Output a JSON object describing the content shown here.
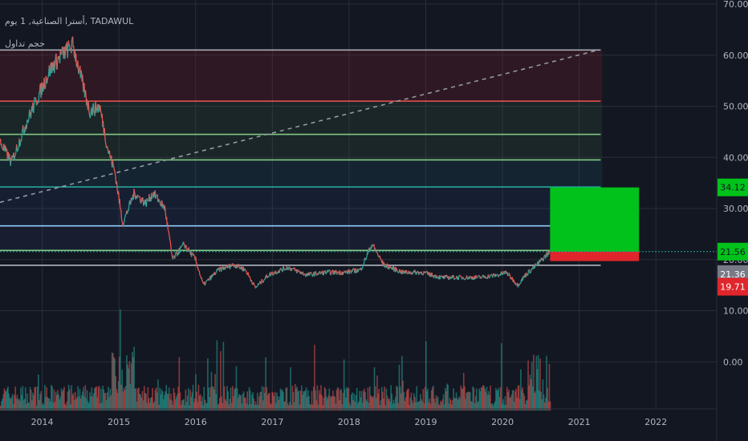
{
  "legend": {
    "symbol_line": "أسترا الصناعية, 1 يوم, TADAWUL",
    "volume_label": "حجم تداول"
  },
  "colors": {
    "background": "#131722",
    "grid": "#2a2e39",
    "up": "#26a69a",
    "down": "#ef5350",
    "target_zone": "#00c21a",
    "stop_zone": "#e0262c",
    "label_green": "#00c21a",
    "label_gray": "#787b86",
    "label_red": "#e0262c"
  },
  "chart_data": {
    "type": "line",
    "title": "",
    "price_axis": {
      "min": -10,
      "max": 70,
      "ticks": [
        "70.00",
        "60.00",
        "50.00",
        "40.00",
        "30.00",
        "20.00",
        "10.00",
        "0.00"
      ]
    },
    "time_axis": {
      "range": [
        2013.45,
        2023.2
      ],
      "ticks": [
        "2014",
        "2015",
        "2016",
        "2017",
        "2018",
        "2019",
        "2020",
        "2021",
        "2022"
      ]
    },
    "price_series": {
      "name": "",
      "x": [
        2013.45,
        2013.6,
        2013.8,
        2013.95,
        2014.1,
        2014.25,
        2014.4,
        2014.5,
        2014.62,
        2014.75,
        2014.85,
        2014.95,
        2015.05,
        2015.2,
        2015.35,
        2015.45,
        2015.6,
        2015.7,
        2015.85,
        2016.0,
        2016.1,
        2016.3,
        2016.5,
        2016.65,
        2016.78,
        2016.95,
        2017.2,
        2017.45,
        2017.7,
        2017.95,
        2018.15,
        2018.3,
        2018.45,
        2018.7,
        2018.95,
        2019.2,
        2019.45,
        2019.7,
        2019.95,
        2020.05,
        2020.2,
        2020.3,
        2020.45,
        2020.58,
        2020.62
      ],
      "y": [
        43,
        39,
        47,
        52,
        57,
        60,
        62,
        56,
        49,
        50,
        42,
        37,
        27,
        33,
        31,
        33,
        30,
        20,
        23,
        20,
        15,
        18,
        19,
        18,
        14.5,
        17,
        18.5,
        17,
        17.5,
        17.5,
        18,
        23,
        19,
        17.5,
        17.5,
        16.5,
        16.5,
        16.5,
        17,
        17.5,
        15,
        17,
        19,
        21,
        21.56
      ]
    },
    "volume_note": "volume histogram at the bottom, unlabeled values",
    "horizontal_levels": [
      {
        "price": 61.0,
        "color": "#b2b5be"
      },
      {
        "price": 51.0,
        "color": "#ef5350"
      },
      {
        "price": 44.5,
        "color": "#81c784"
      },
      {
        "price": 39.5,
        "color": "#81c784"
      },
      {
        "price": 34.2,
        "color": "#26a69a"
      },
      {
        "price": 26.6,
        "color": "#90caf9"
      },
      {
        "price": 21.8,
        "color": "#81c784"
      },
      {
        "price": 18.9,
        "color": "#b2b5be"
      }
    ],
    "trend_line": {
      "from": [
        2013.45,
        31.2
      ],
      "to": [
        2021.25,
        61.0
      ]
    },
    "position": {
      "entry": 21.56,
      "target": 34.12,
      "stop": 19.71,
      "start": 2020.62,
      "end": 2021.78
    },
    "price_labels": [
      {
        "text": "34.12",
        "kind": "target"
      },
      {
        "text": "21.56",
        "kind": "entry"
      },
      {
        "text": "21.36",
        "kind": "last"
      },
      {
        "text": "19.71",
        "kind": "stop"
      }
    ]
  }
}
